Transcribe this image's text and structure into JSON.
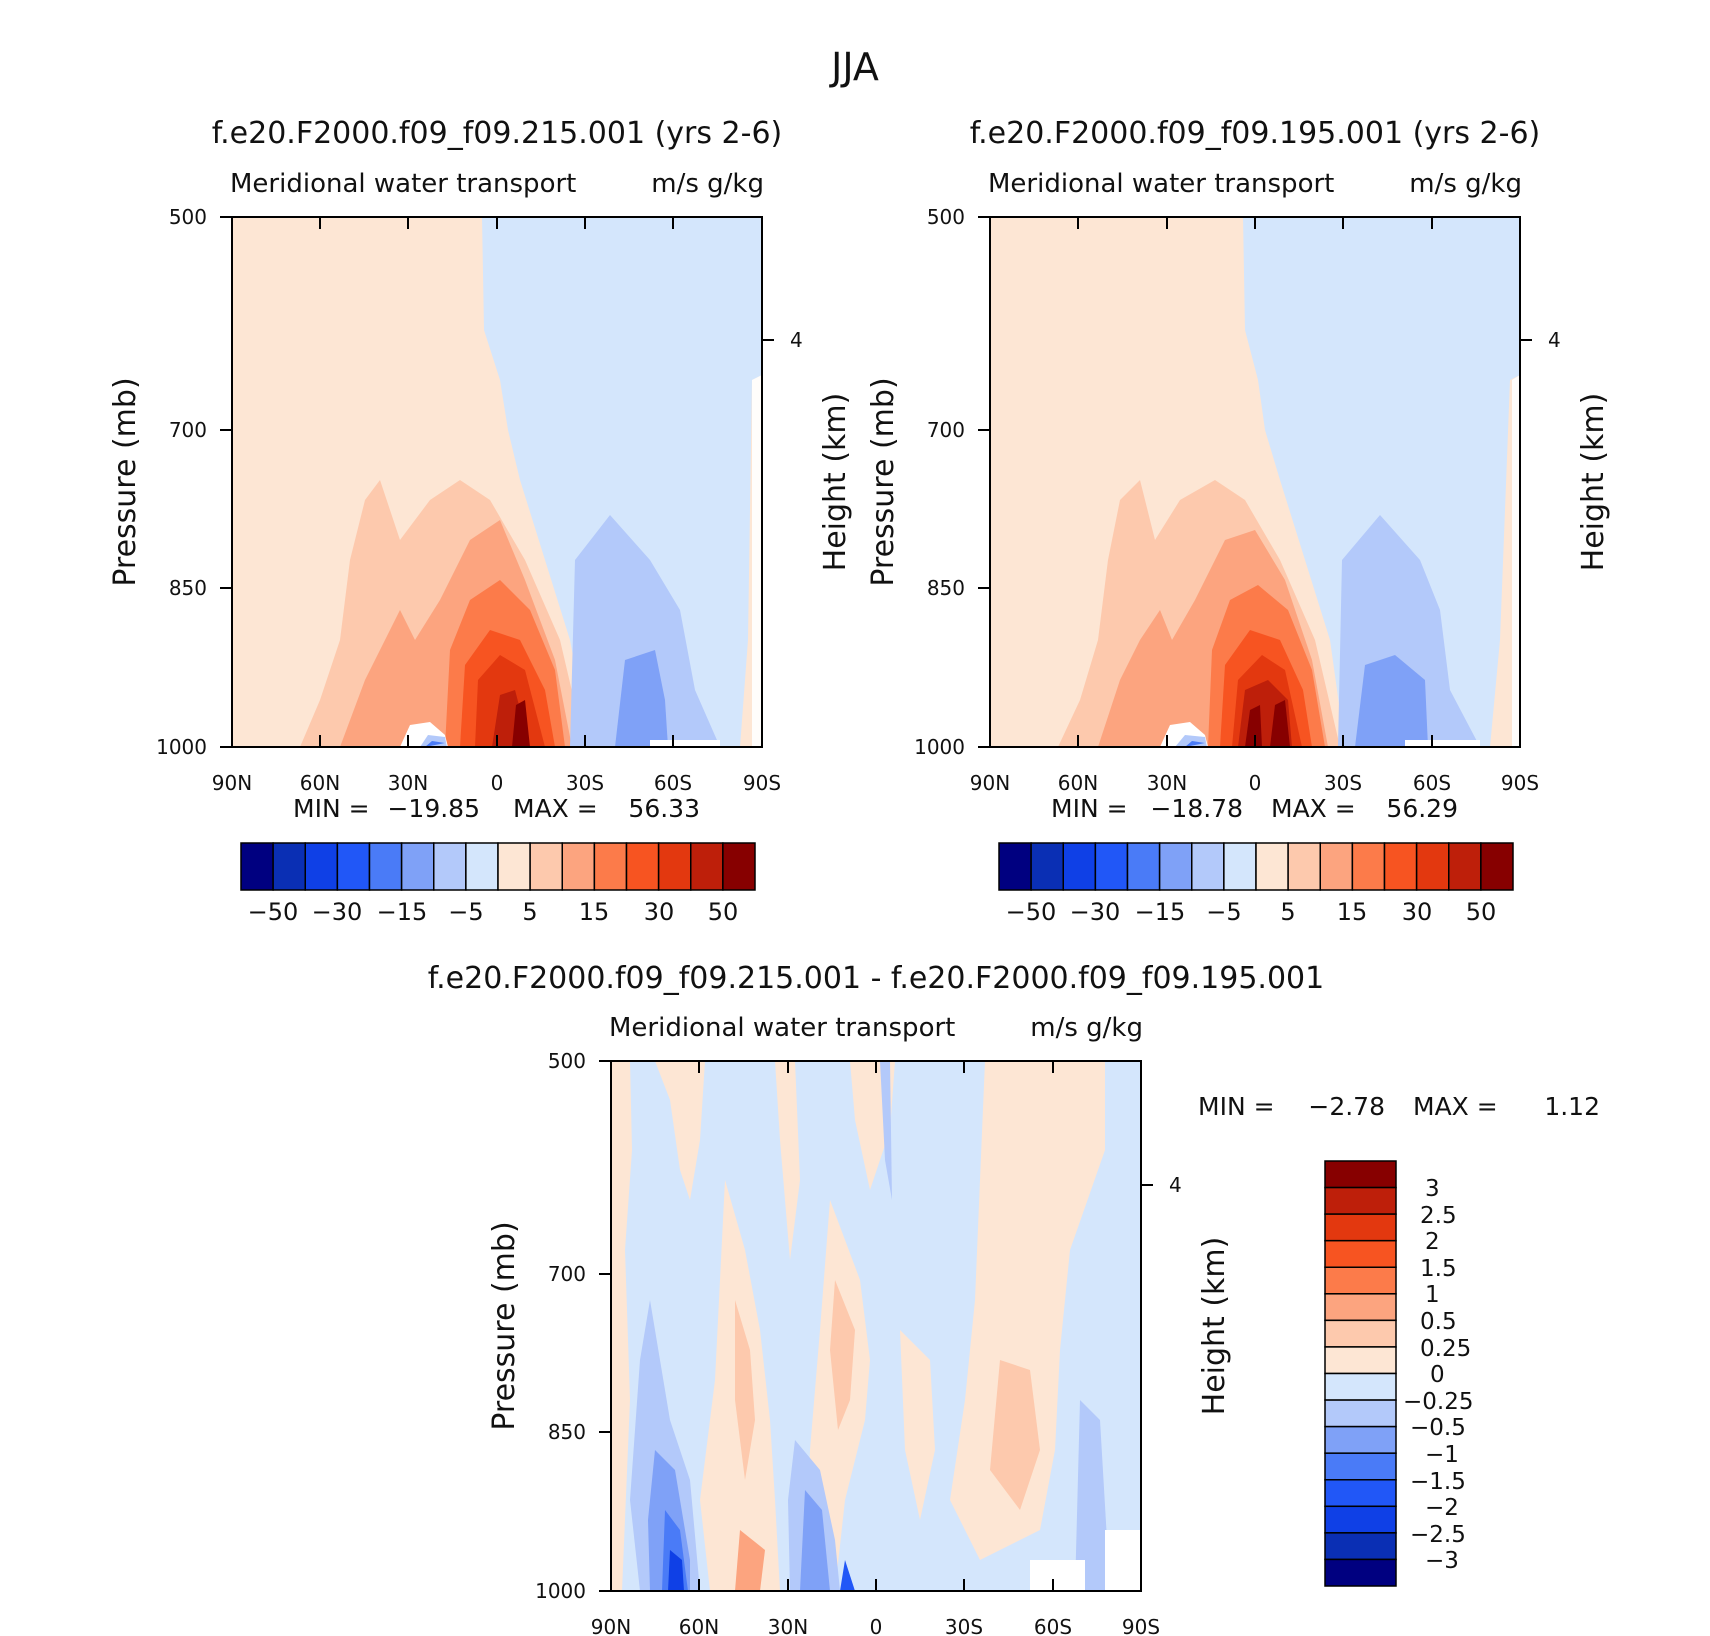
{
  "figure": {
    "title": "JJA",
    "colors": {
      "full_palette": [
        "#000080",
        "#0a2fb4",
        "#0f40e6",
        "#2157f7",
        "#4a7bf7",
        "#7fa1f7",
        "#b3c9fa",
        "#d4e6fc",
        "#fde6d4",
        "#fdc9ad",
        "#fca47f",
        "#fc7b4a",
        "#f75421",
        "#e3380f",
        "#be1f0a",
        "#870000"
      ],
      "diff_palette": [
        "#000080",
        "#0a2fb4",
        "#0f40e6",
        "#2157f7",
        "#4a7bf7",
        "#7fa1f7",
        "#b3c9fa",
        "#d4e6fc",
        "#fde6d4",
        "#fdc9ad",
        "#fca47f",
        "#fc7b4a",
        "#f75421",
        "#e3380f",
        "#be1f0a",
        "#870000"
      ]
    }
  },
  "chart_data": [
    {
      "id": "panel1",
      "type": "contour",
      "title": "f.e20.F2000.f09_f09.215.001 (yrs 2-6)",
      "variable": "Meridional water transport",
      "units": "m/s g/kg",
      "ylabel": "Pressure (mb)",
      "ylabel_right": "Height (km)",
      "x_ticks": [
        "90N",
        "60N",
        "30N",
        "0",
        "30S",
        "60S",
        "90S"
      ],
      "y_ticks": [
        "500",
        "700",
        "850",
        "1000"
      ],
      "right_ticks": [
        "4"
      ],
      "xlim": [
        90,
        -90
      ],
      "ylim": [
        1000,
        500
      ],
      "stats": {
        "min_label": "MIN =",
        "min": "-19.85",
        "max_label": "MAX =",
        "max": "56.33"
      },
      "colorbar_levels": [
        -50,
        -40,
        -30,
        -20,
        -15,
        -10,
        -5,
        0,
        5,
        10,
        15,
        20,
        30,
        40,
        50
      ],
      "colorbar_labels": [
        "-50",
        "-30",
        "-15",
        "-5",
        "5",
        "15",
        "30",
        "50"
      ]
    },
    {
      "id": "panel2",
      "type": "contour",
      "title": "f.e20.F2000.f09_f09.195.001 (yrs 2-6)",
      "variable": "Meridional water transport",
      "units": "m/s g/kg",
      "ylabel": "Pressure (mb)",
      "ylabel_right": "Height (km)",
      "x_ticks": [
        "90N",
        "60N",
        "30N",
        "0",
        "30S",
        "60S",
        "90S"
      ],
      "y_ticks": [
        "500",
        "700",
        "850",
        "1000"
      ],
      "right_ticks": [
        "4"
      ],
      "xlim": [
        90,
        -90
      ],
      "ylim": [
        1000,
        500
      ],
      "stats": {
        "min_label": "MIN =",
        "min": "-18.78",
        "max_label": "MAX =",
        "max": "56.29"
      },
      "colorbar_levels": [
        -50,
        -40,
        -30,
        -20,
        -15,
        -10,
        -5,
        0,
        5,
        10,
        15,
        20,
        30,
        40,
        50
      ],
      "colorbar_labels": [
        "-50",
        "-30",
        "-15",
        "-5",
        "5",
        "15",
        "30",
        "50"
      ]
    },
    {
      "id": "panel3",
      "type": "contour",
      "title": "f.e20.F2000.f09_f09.215.001 - f.e20.F2000.f09_f09.195.001",
      "variable": "Meridional water transport",
      "units": "m/s g/kg",
      "ylabel": "Pressure (mb)",
      "ylabel_right": "Height (km)",
      "x_ticks": [
        "90N",
        "60N",
        "30N",
        "0",
        "30S",
        "60S",
        "90S"
      ],
      "y_ticks": [
        "500",
        "700",
        "850",
        "1000"
      ],
      "right_ticks": [
        "4"
      ],
      "xlim": [
        90,
        -90
      ],
      "ylim": [
        1000,
        500
      ],
      "stats": {
        "min_label": "MIN =",
        "min": "-2.78",
        "max_label": "MAX =",
        "max": "1.12"
      },
      "colorbar_labels": [
        "3",
        "2.5",
        "2",
        "1.5",
        "1",
        "0.5",
        "0.25",
        "0",
        "-0.25",
        "-0.5",
        "-1",
        "-1.5",
        "-2",
        "-2.5",
        "-3"
      ]
    }
  ]
}
